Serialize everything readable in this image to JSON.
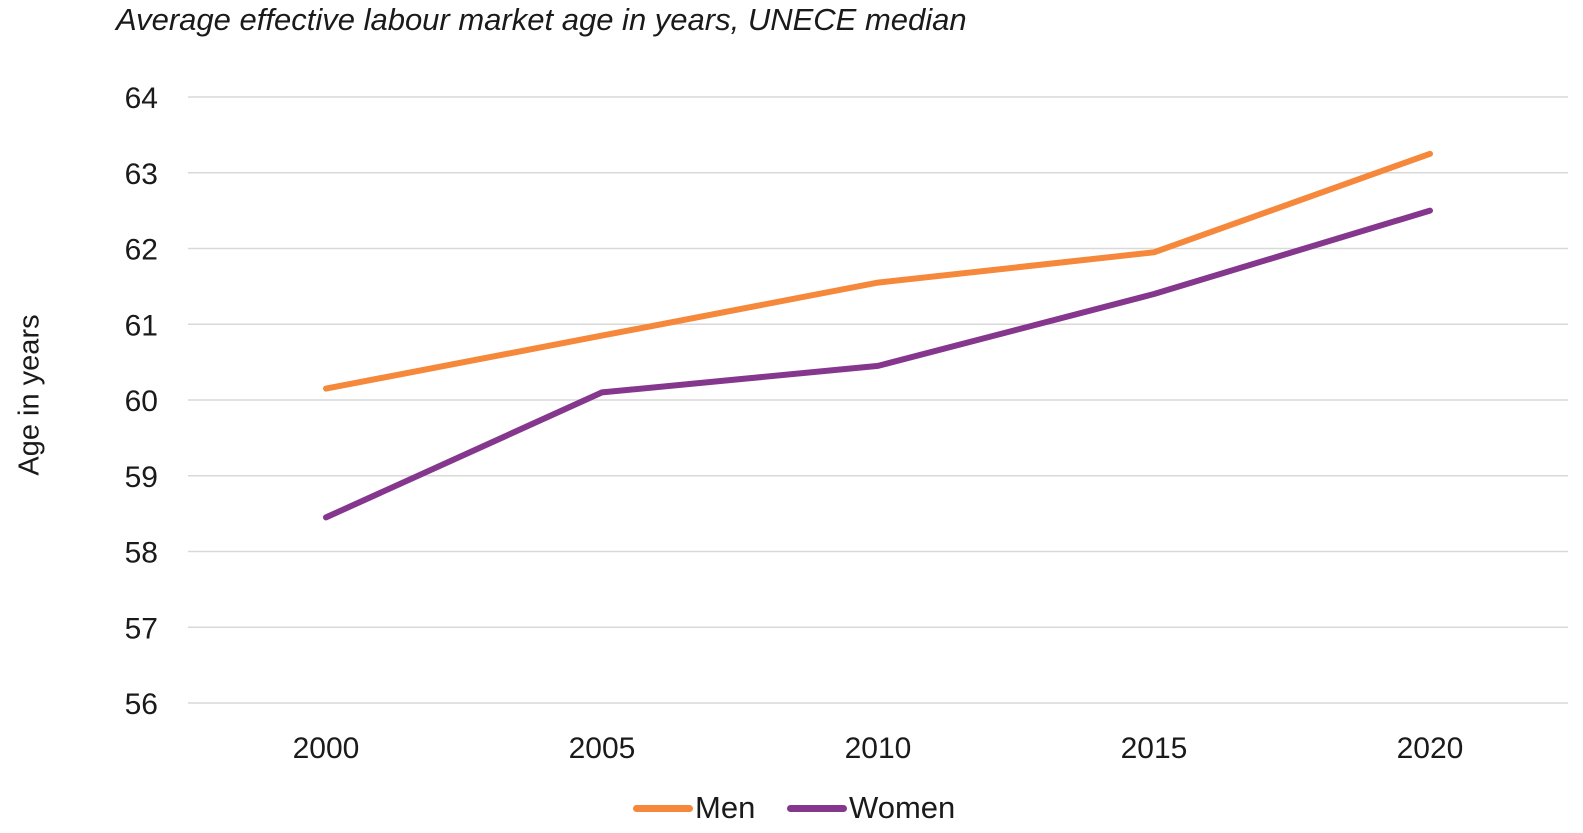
{
  "chart_data": {
    "type": "line",
    "title": "Average effective labour market age in years, UNECE median",
    "xlabel": "",
    "ylabel": "Age in years",
    "categories": [
      "2000",
      "2005",
      "2010",
      "2015",
      "2020"
    ],
    "yticks": [
      "56",
      "57",
      "58",
      "59",
      "60",
      "61",
      "62",
      "63",
      "64"
    ],
    "ylim": [
      56,
      64
    ],
    "grid": true,
    "legend_position": "bottom",
    "series": [
      {
        "name": "Men",
        "color": "#F5883A",
        "values": [
          60.15,
          60.85,
          61.55,
          61.95,
          63.25
        ]
      },
      {
        "name": "Women",
        "color": "#85378E",
        "values": [
          58.45,
          60.1,
          60.45,
          61.4,
          62.5
        ]
      }
    ]
  }
}
